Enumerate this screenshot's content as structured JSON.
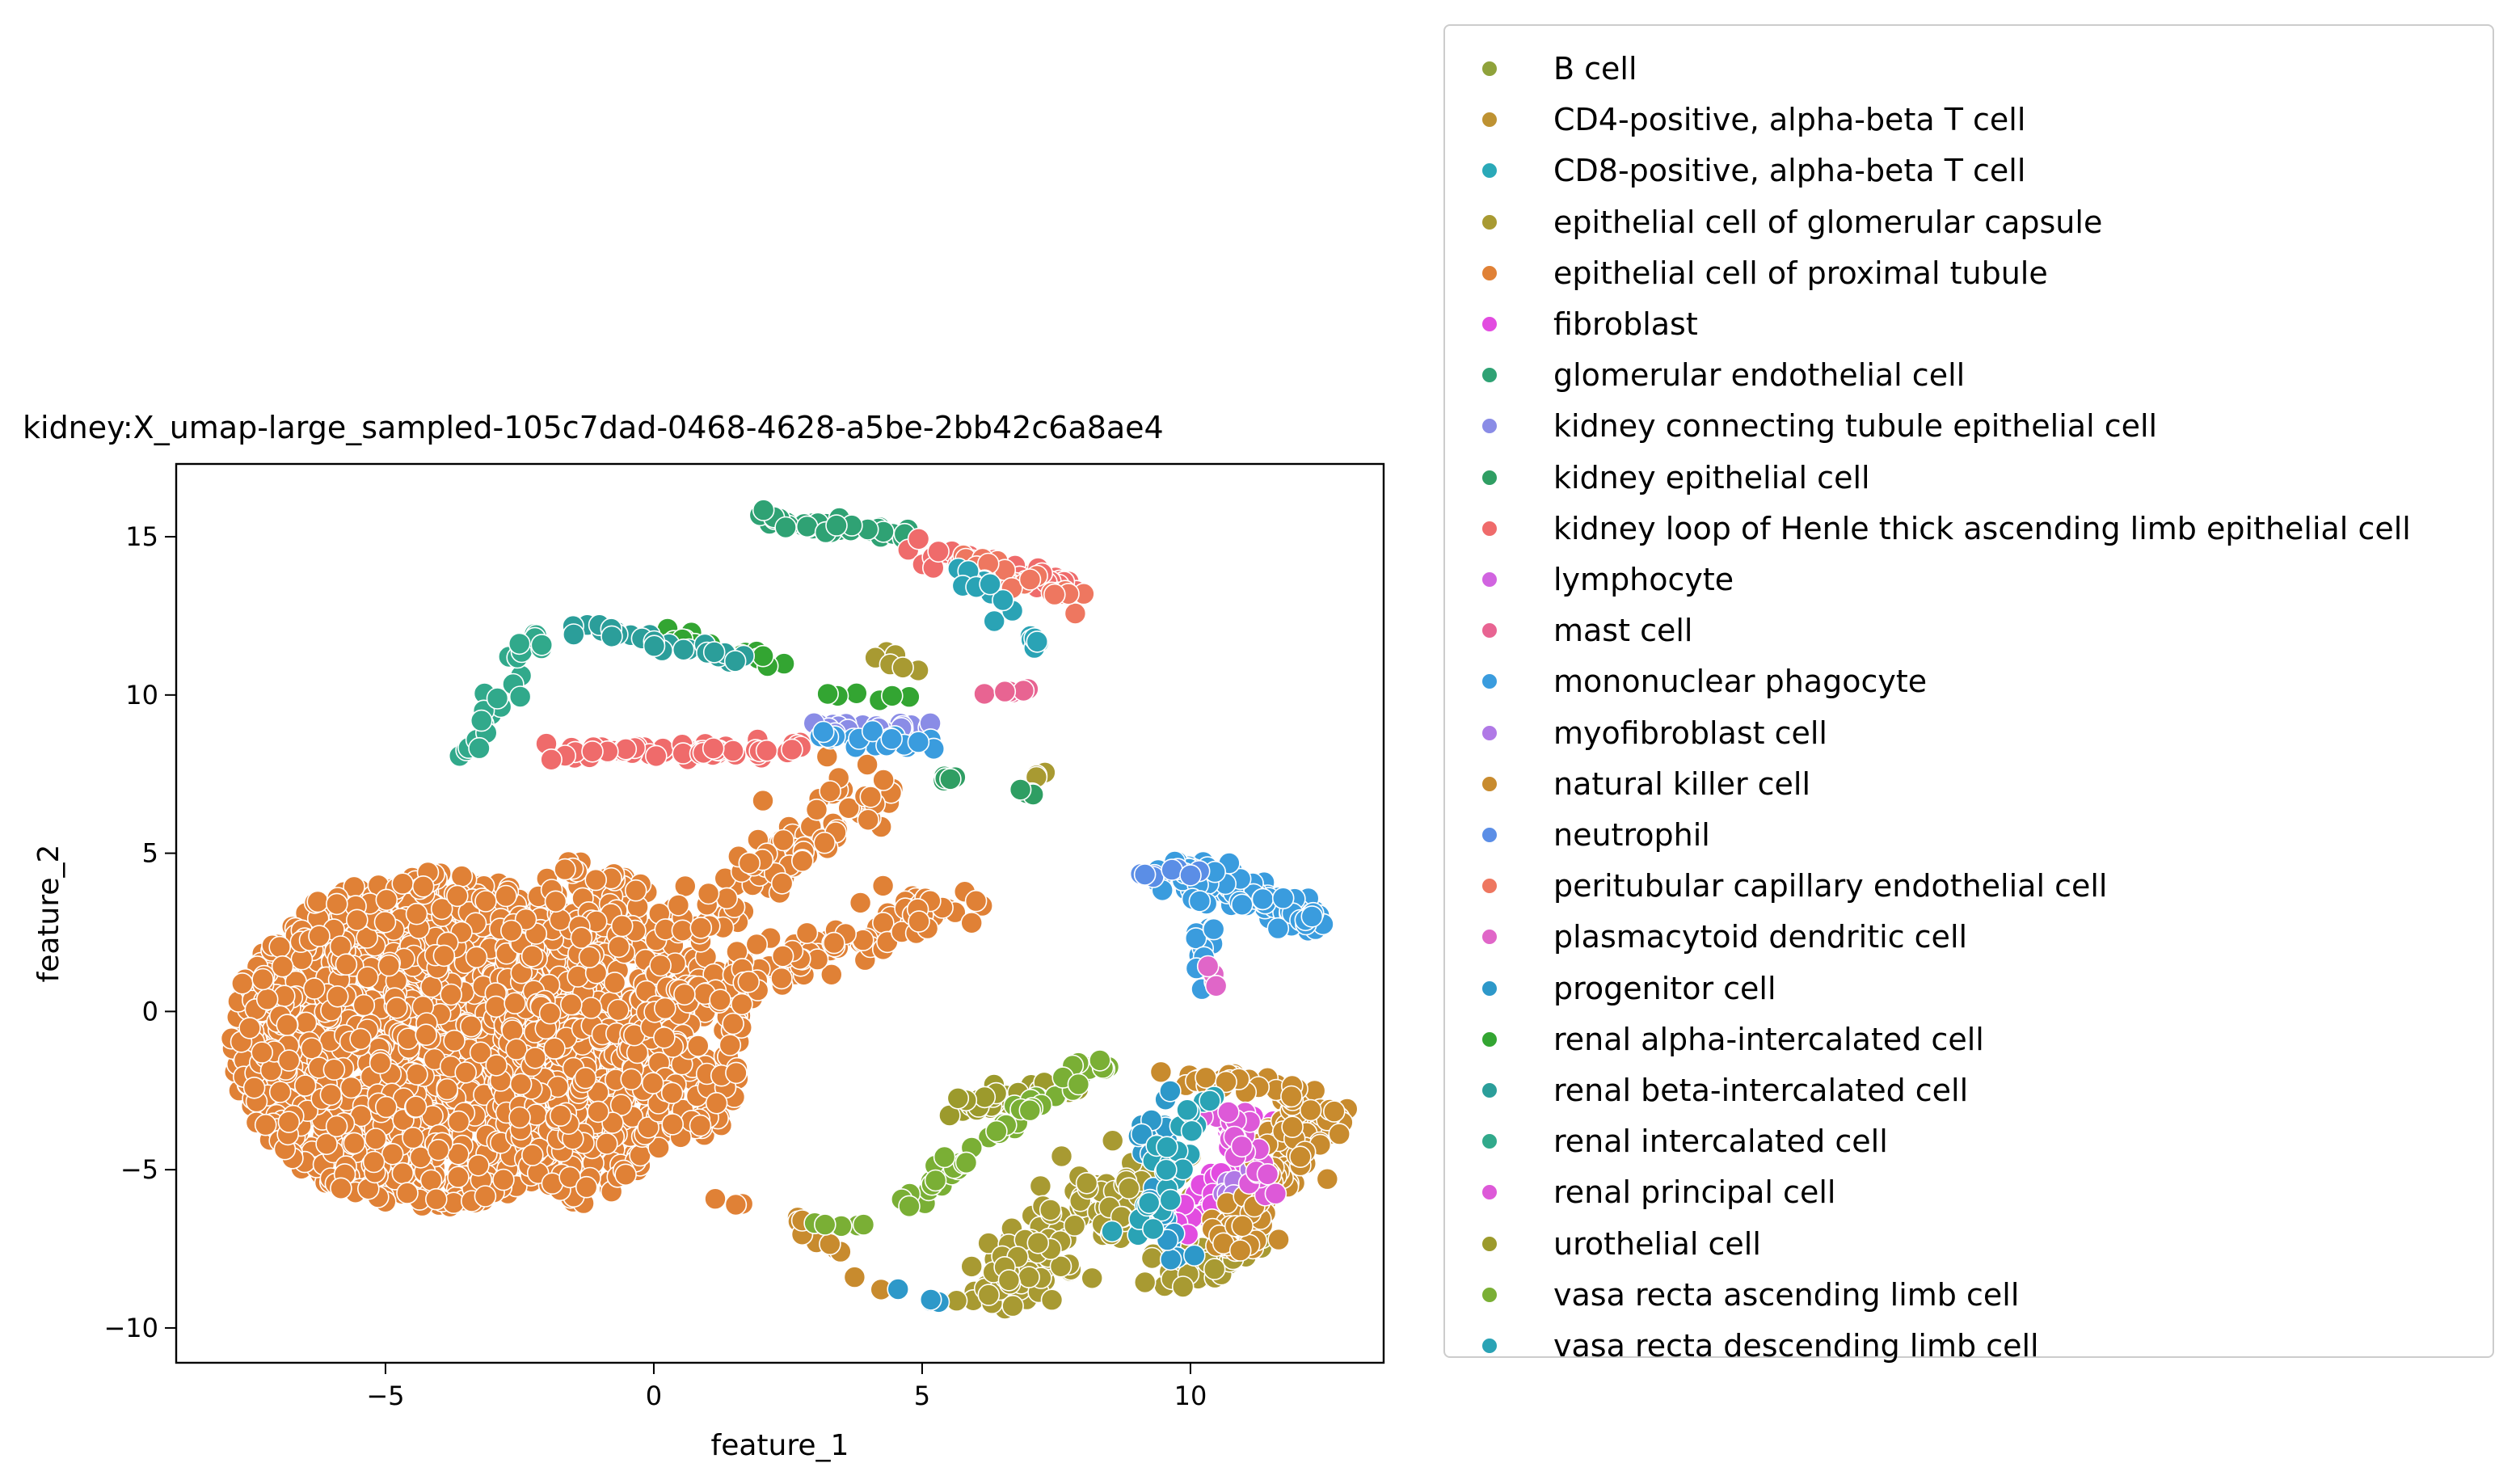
{
  "chart_data": {
    "type": "scatter",
    "title": "kidney:X_umap-large_sampled-105c7dad-0468-4628-a5be-2bb42c6a8ae4",
    "xlabel": "feature_1",
    "ylabel": "feature_2",
    "xlim": [
      -8.9,
      13.6
    ],
    "ylim": [
      -11.1,
      17.3
    ],
    "xticks": [
      -5,
      0,
      5,
      10
    ],
    "xtick_labels": [
      "−5",
      "0",
      "5",
      "10"
    ],
    "yticks": [
      -10,
      -5,
      0,
      5,
      10,
      15
    ],
    "ytick_labels": [
      "−10",
      "−5",
      "0",
      "5",
      "10",
      "15"
    ],
    "grid": false,
    "legend_placement": "outside right",
    "series": [
      {
        "name": "B cell",
        "color": "#8fa23b",
        "clusters": []
      },
      {
        "name": "CD4-positive, alpha-beta T cell",
        "color": "#be9232",
        "clusters": []
      },
      {
        "name": "CD8-positive, alpha-beta T cell",
        "color": "#2aa9b8",
        "clusters": []
      },
      {
        "name": "epithelial cell of glomerular capsule",
        "color": "#a89a32",
        "clusters": [
          {
            "x1": 5.8,
            "y1": -9.2,
            "x2": 7.4,
            "y2": -8.2,
            "w": 0.5,
            "n": 40
          },
          {
            "x1": 6.5,
            "y1": -8.2,
            "x2": 9.3,
            "y2": -4.8,
            "w": 1.1,
            "n": 120
          },
          {
            "x1": 9.4,
            "y1": -8.8,
            "x2": 11.2,
            "y2": -7.0,
            "w": 0.7,
            "n": 40
          },
          {
            "x1": 4.1,
            "y1": 11.4,
            "x2": 5.1,
            "y2": 10.5,
            "w": 0.2,
            "n": 6
          },
          {
            "x1": 7.0,
            "y1": 7.3,
            "x2": 7.3,
            "y2": 7.5,
            "w": 0.1,
            "n": 3
          }
        ]
      },
      {
        "name": "epithelial cell of proximal tubule",
        "color": "#e08136",
        "clusters": [
          {
            "type": "blob",
            "cx": -4.2,
            "cy": -0.9,
            "rx": 3.7,
            "ry": 5.3,
            "n": 1500
          },
          {
            "type": "blob",
            "cx": -1.2,
            "cy": -0.6,
            "rx": 1.8,
            "ry": 5.5,
            "n": 500
          },
          {
            "type": "blob",
            "cx": 0.6,
            "cy": -1.2,
            "rx": 1.1,
            "ry": 3.0,
            "n": 140
          },
          {
            "x1": 0.5,
            "y1": 2.5,
            "x2": 4.3,
            "y2": 7.2,
            "w": 0.9,
            "n": 110
          },
          {
            "x1": 0.6,
            "y1": 0.4,
            "x2": 5.6,
            "y2": 3.5,
            "w": 0.8,
            "n": 120
          },
          {
            "x1": 1.1,
            "y1": -5.8,
            "x2": 1.6,
            "y2": -6.1,
            "w": 0.1,
            "n": 3
          }
        ]
      },
      {
        "name": "fibroblast",
        "color": "#e24ce0",
        "clusters": [
          {
            "x1": 9.7,
            "y1": -6.9,
            "x2": 11.4,
            "y2": -3.5,
            "w": 0.5,
            "n": 45
          }
        ]
      },
      {
        "name": "glomerular endothelial cell",
        "color": "#2fa274",
        "clusters": [
          {
            "x1": 1.9,
            "y1": 15.6,
            "x2": 4.6,
            "y2": 15.1,
            "w": 0.3,
            "n": 40
          }
        ]
      },
      {
        "name": "kidney connecting tubule epithelial cell",
        "color": "#8a8ce6",
        "clusters": [
          {
            "x1": 3.0,
            "y1": 9.0,
            "x2": 5.2,
            "y2": 9.0,
            "w": 0.3,
            "n": 20
          }
        ]
      },
      {
        "name": "kidney epithelial cell",
        "color": "#2f9e63",
        "clusters": [
          {
            "x1": 6.8,
            "y1": 7.0,
            "x2": 7.5,
            "y2": 6.7,
            "w": 0.1,
            "n": 5
          },
          {
            "x1": 4.9,
            "y1": 7.6,
            "x2": 5.6,
            "y2": 7.3,
            "w": 0.1,
            "n": 5
          }
        ]
      },
      {
        "name": "kidney loop of Henle thick ascending limb epithelial cell",
        "color": "#ef6b6b",
        "clusters": [
          {
            "x1": -2.1,
            "y1": 8.2,
            "x2": 3.0,
            "y2": 8.3,
            "w": 0.25,
            "n": 60
          },
          {
            "x1": 4.8,
            "y1": 14.6,
            "x2": 7.7,
            "y2": 13.4,
            "w": 0.4,
            "n": 50
          }
        ]
      },
      {
        "name": "lymphocyte",
        "color": "#d164e0",
        "clusters": []
      },
      {
        "name": "mast cell",
        "color": "#e86492",
        "clusters": [
          {
            "x1": 6.0,
            "y1": 10.0,
            "x2": 7.0,
            "y2": 10.1,
            "w": 0.1,
            "n": 6
          }
        ]
      },
      {
        "name": "mononuclear phagocyte",
        "color": "#3a9cde",
        "clusters": [
          {
            "x1": 9.7,
            "y1": 4.5,
            "x2": 12.3,
            "y2": 3.0,
            "w": 0.6,
            "n": 110
          },
          {
            "x1": 10.3,
            "y1": 3.3,
            "x2": 10.1,
            "y2": 0.8,
            "w": 0.25,
            "n": 15
          },
          {
            "x1": 3.0,
            "y1": 8.7,
            "x2": 5.1,
            "y2": 8.5,
            "w": 0.25,
            "n": 20
          }
        ]
      },
      {
        "name": "myofibroblast cell",
        "color": "#b079e6",
        "clusters": [
          {
            "x1": 10.7,
            "y1": -6.0,
            "x2": 11.5,
            "y2": -3.2,
            "w": 0.3,
            "n": 18
          }
        ]
      },
      {
        "name": "natural killer cell",
        "color": "#c88b2e",
        "clusters": [
          {
            "x1": 10.6,
            "y1": -7.5,
            "x2": 12.3,
            "y2": -3.0,
            "w": 0.7,
            "n": 140
          },
          {
            "x1": 9.9,
            "y1": -2.2,
            "x2": 12.0,
            "y2": -2.5,
            "w": 0.4,
            "n": 40
          },
          {
            "x1": 2.6,
            "y1": -6.6,
            "x2": 4.2,
            "y2": -8.8,
            "w": 0.2,
            "n": 10
          }
        ]
      },
      {
        "name": "neutrophil",
        "color": "#5b8ee6",
        "clusters": [
          {
            "x1": 9.0,
            "y1": 4.3,
            "x2": 10.2,
            "y2": 4.5,
            "w": 0.2,
            "n": 8
          }
        ]
      },
      {
        "name": "peritubular capillary endothelial cell",
        "color": "#ee7760",
        "clusters": [
          {
            "x1": 5.7,
            "y1": 14.4,
            "x2": 7.9,
            "y2": 13.0,
            "w": 0.4,
            "n": 25
          }
        ]
      },
      {
        "name": "plasmacytoid dendritic cell",
        "color": "#e066c8",
        "clusters": [
          {
            "x1": 10.4,
            "y1": 1.6,
            "x2": 10.6,
            "y2": 0.4,
            "w": 0.1,
            "n": 4
          }
        ]
      },
      {
        "name": "progenitor cell",
        "color": "#2d98c9",
        "clusters": [
          {
            "x1": 9.2,
            "y1": -2.6,
            "x2": 9.6,
            "y2": -8.4,
            "w": 0.5,
            "n": 30
          },
          {
            "x1": 4.5,
            "y1": -8.6,
            "x2": 5.5,
            "y2": -9.4,
            "w": 0.1,
            "n": 4
          }
        ]
      },
      {
        "name": "renal alpha-intercalated cell",
        "color": "#33a532",
        "clusters": [
          {
            "x1": 0.2,
            "y1": 12.1,
            "x2": 2.3,
            "y2": 11.0,
            "w": 0.3,
            "n": 18
          },
          {
            "x1": 3.0,
            "y1": 10.1,
            "x2": 5.2,
            "y2": 9.8,
            "w": 0.15,
            "n": 6
          }
        ]
      },
      {
        "name": "renal beta-intercalated cell",
        "color": "#2b9e9a",
        "clusters": [
          {
            "x1": -1.6,
            "y1": 12.3,
            "x2": 2.0,
            "y2": 11.0,
            "w": 0.3,
            "n": 30
          }
        ]
      },
      {
        "name": "renal intercalated cell",
        "color": "#31a98b",
        "clusters": [
          {
            "x1": -3.5,
            "y1": 8.0,
            "x2": -2.1,
            "y2": 12.1,
            "w": 0.3,
            "n": 26
          }
        ]
      },
      {
        "name": "renal principal cell",
        "color": "#dd59d8",
        "clusters": [
          {
            "x1": 10.6,
            "y1": -3.0,
            "x2": 11.6,
            "y2": -6.0,
            "w": 0.4,
            "n": 30
          }
        ]
      },
      {
        "name": "urothelial cell",
        "color": "#9c9a2c",
        "clusters": [
          {
            "x1": 5.5,
            "y1": -3.1,
            "x2": 7.8,
            "y2": -2.2,
            "w": 0.4,
            "n": 40
          }
        ]
      },
      {
        "name": "vasa recta ascending limb cell",
        "color": "#7aaf35",
        "clusters": [
          {
            "x1": 4.5,
            "y1": -6.3,
            "x2": 8.3,
            "y2": -1.5,
            "w": 0.35,
            "n": 55
          },
          {
            "x1": 2.8,
            "y1": -6.8,
            "x2": 3.9,
            "y2": -6.7,
            "w": 0.1,
            "n": 5
          }
        ]
      },
      {
        "name": "vasa recta descending limb cell",
        "color": "#2aa3b5",
        "clusters": [
          {
            "x1": 5.7,
            "y1": 14.0,
            "x2": 7.2,
            "y2": 11.6,
            "w": 0.3,
            "n": 20
          },
          {
            "x1": 8.9,
            "y1": -7.5,
            "x2": 10.3,
            "y2": -2.4,
            "w": 0.4,
            "n": 30
          }
        ]
      }
    ]
  }
}
